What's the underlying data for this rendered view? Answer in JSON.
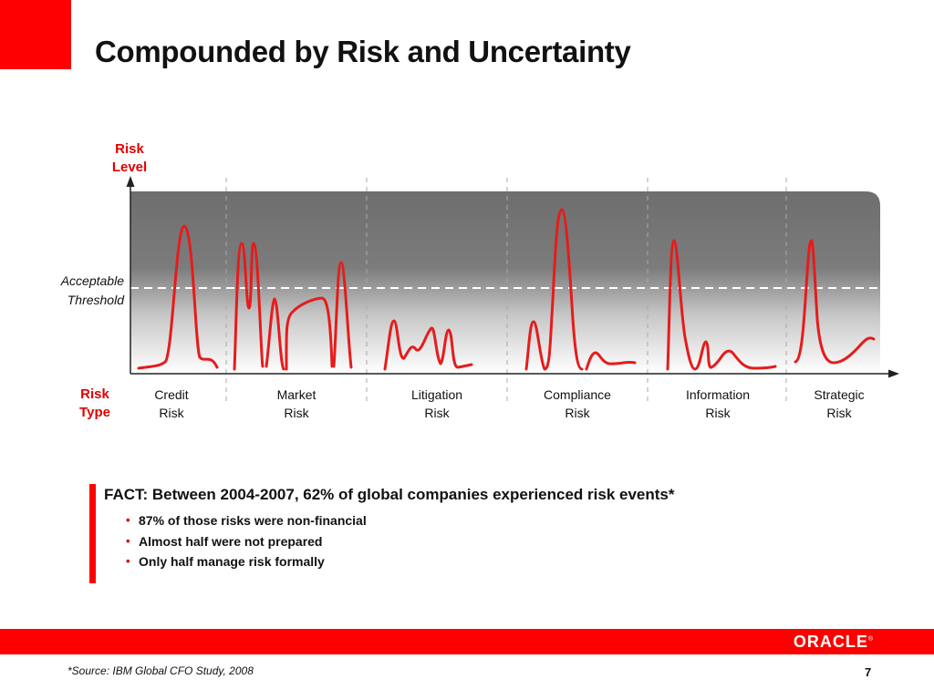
{
  "title": "Compounded by Risk and Uncertainty",
  "diagram": {
    "y_axis_label": "Risk\nLevel",
    "x_axis_label": "Risk\nType",
    "threshold_label": "Acceptable\nThreshold",
    "risk_types": [
      "Credit\nRisk",
      "Market\nRisk",
      "Litigation\nRisk",
      "Compliance\nRisk",
      "Information\nRisk",
      "Strategic\nRisk"
    ]
  },
  "fact": {
    "headline": "FACT: Between 2004-2007, 62% of global companies experienced risk events*",
    "bullets": [
      "87% of those risks were non-financial",
      "Almost half were not prepared",
      "Only half manage risk formally"
    ]
  },
  "footer": {
    "brand": "ORACLE",
    "source": "*Source:  IBM Global CFO Study, 2008",
    "page_number": "7"
  },
  "colors": {
    "accent": "#ff0000",
    "curve": "#e51c1c"
  }
}
